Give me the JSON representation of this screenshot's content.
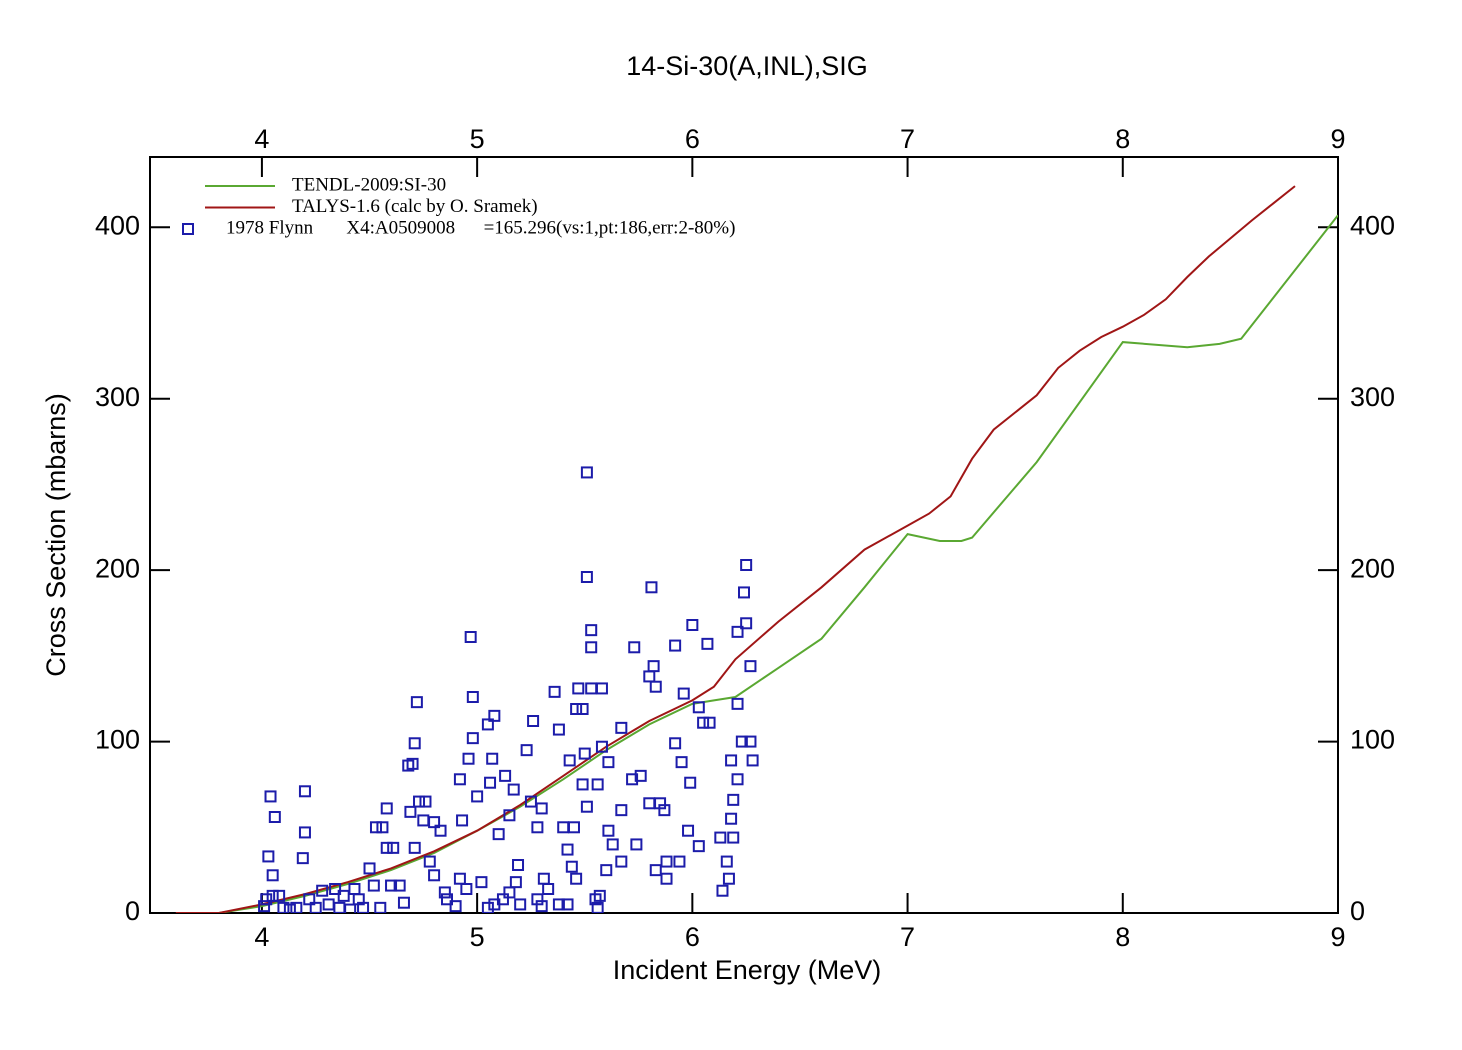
{
  "chart_data": {
    "type": "line",
    "title": "14-Si-30(A,INL),SIG",
    "x_label": "Incident Energy (MeV)",
    "y_label": "Cross Section (mbarns)",
    "xlim": [
      3.48,
      9
    ],
    "ylim": [
      0,
      441
    ],
    "xticks": [
      4,
      5,
      6,
      7,
      8,
      9
    ],
    "yticks": [
      0,
      100,
      200,
      300,
      400
    ],
    "mirror_axes": true,
    "legend": "top-left",
    "series": [
      {
        "name": "TENDL-2009:SI-30",
        "color": "#5aa832",
        "style": "line",
        "x": [
          3.7,
          3.8,
          4.0,
          4.2,
          4.4,
          4.6,
          4.8,
          5.0,
          5.2,
          5.4,
          5.6,
          5.8,
          6.0,
          6.1,
          6.2,
          6.4,
          6.6,
          6.8,
          7.0,
          7.15,
          7.25,
          7.3,
          7.6,
          8.0,
          8.3,
          8.45,
          8.55,
          9.0
        ],
        "values": [
          0,
          0,
          4,
          10,
          17,
          25,
          35,
          48,
          62,
          78,
          95,
          110,
          122,
          124,
          126,
          143,
          160,
          190,
          221,
          217,
          217,
          219,
          263,
          333,
          330,
          332,
          335,
          407
        ]
      },
      {
        "name": "TALYS-1.6 (calc by O. Sramek)",
        "color": "#a01616",
        "style": "line",
        "x": [
          3.6,
          3.8,
          4.0,
          4.2,
          4.4,
          4.6,
          4.8,
          5.0,
          5.2,
          5.4,
          5.6,
          5.8,
          6.0,
          6.1,
          6.2,
          6.4,
          6.6,
          6.8,
          7.0,
          7.1,
          7.2,
          7.3,
          7.4,
          7.6,
          7.7,
          7.8,
          7.9,
          8.0,
          8.1,
          8.2,
          8.3,
          8.4,
          8.6,
          8.7,
          8.8
        ],
        "values": [
          0,
          0,
          5,
          11,
          18,
          26,
          36,
          48,
          63,
          80,
          97,
          112,
          124,
          132,
          148,
          170,
          190,
          212,
          226,
          233,
          243,
          265,
          282,
          302,
          318,
          328,
          336,
          342,
          349,
          358,
          371,
          383,
          404,
          414,
          424
        ]
      },
      {
        "name": "1978 Flynn       X4:A0509008      =165.296(vs:1,pt:186,err:2-80%)",
        "color": "#1c1caa",
        "style": "markers",
        "x": [
          4.02,
          4.03,
          4.04,
          4.06,
          4.05,
          4.01,
          4.05,
          4.08,
          4.1,
          4.13,
          4.2,
          4.2,
          4.19,
          4.16,
          4.22,
          4.25,
          4.28,
          4.31,
          4.34,
          4.36,
          4.38,
          4.41,
          4.43,
          4.45,
          4.47,
          4.5,
          4.52,
          4.53,
          4.56,
          4.58,
          4.58,
          4.61,
          4.6,
          4.55,
          4.64,
          4.66,
          4.68,
          4.72,
          4.7,
          4.71,
          4.69,
          4.71,
          4.73,
          4.75,
          4.76,
          4.78,
          4.8,
          4.8,
          4.83,
          4.86,
          4.9,
          4.92,
          4.92,
          4.96,
          4.93,
          4.97,
          4.98,
          4.98,
          5.0,
          5.02,
          5.05,
          5.07,
          5.08,
          5.06,
          5.1,
          5.13,
          5.15,
          5.17,
          5.19,
          5.23,
          5.25,
          5.26,
          5.28,
          5.3,
          5.31,
          5.36,
          5.38,
          5.4,
          5.42,
          5.44,
          5.43,
          5.51,
          5.51,
          5.53,
          5.53,
          5.47,
          5.53,
          5.58,
          5.46,
          5.49,
          5.5,
          5.49,
          5.56,
          5.51,
          5.58,
          5.45,
          5.73,
          5.8,
          5.82,
          5.81,
          5.83,
          5.67,
          5.61,
          5.72,
          5.67,
          5.61,
          5.63,
          5.74,
          5.67,
          5.83,
          5.8,
          5.85,
          5.76,
          5.92,
          6.0,
          6.07,
          5.96,
          6.03,
          6.05,
          6.08,
          5.92,
          5.95,
          5.99,
          5.87,
          5.98,
          6.03,
          5.88,
          5.94,
          5.88,
          6.25,
          6.24,
          6.25,
          6.21,
          6.27,
          6.21,
          6.23,
          6.27,
          6.18,
          6.28,
          6.21,
          6.19,
          6.18,
          6.13,
          6.19,
          6.16,
          6.17,
          6.14,
          5.05,
          5.08,
          5.12,
          5.15,
          5.2,
          5.3,
          5.33,
          5.38,
          5.42,
          5.46,
          5.55,
          5.57,
          5.56,
          4.95,
          5.18,
          5.28,
          5.6,
          4.85
        ],
        "values": [
          8,
          33,
          68,
          56,
          22,
          4,
          10,
          10,
          3,
          2,
          71,
          47,
          32,
          3,
          8,
          3,
          13,
          5,
          14,
          3,
          10,
          2,
          14,
          8,
          3,
          26,
          16,
          50,
          50,
          61,
          38,
          38,
          16,
          3,
          16,
          6,
          86,
          123,
          87,
          99,
          59,
          38,
          65,
          54,
          65,
          30,
          22,
          53,
          48,
          8,
          4,
          20,
          78,
          90,
          54,
          161,
          102,
          126,
          68,
          18,
          110,
          90,
          115,
          76,
          46,
          80,
          57,
          72,
          28,
          95,
          65,
          112,
          50,
          61,
          20,
          129,
          107,
          50,
          37,
          27,
          89,
          257,
          196,
          165,
          155,
          131,
          131,
          131,
          119,
          119,
          93,
          75,
          75,
          62,
          97,
          50,
          155,
          138,
          144,
          190,
          132,
          108,
          88,
          78,
          60,
          48,
          40,
          40,
          30,
          25,
          64,
          64,
          80,
          156,
          168,
          157,
          128,
          120,
          111,
          111,
          99,
          88,
          76,
          60,
          48,
          39,
          30,
          30,
          20,
          203,
          187,
          169,
          164,
          144,
          122,
          100,
          100,
          89,
          89,
          78,
          66,
          55,
          44,
          44,
          30,
          20,
          13,
          3,
          5,
          8,
          12,
          5,
          4,
          14,
          5,
          5,
          20,
          8,
          10,
          3,
          14,
          18,
          8,
          25,
          12
        ]
      }
    ]
  }
}
